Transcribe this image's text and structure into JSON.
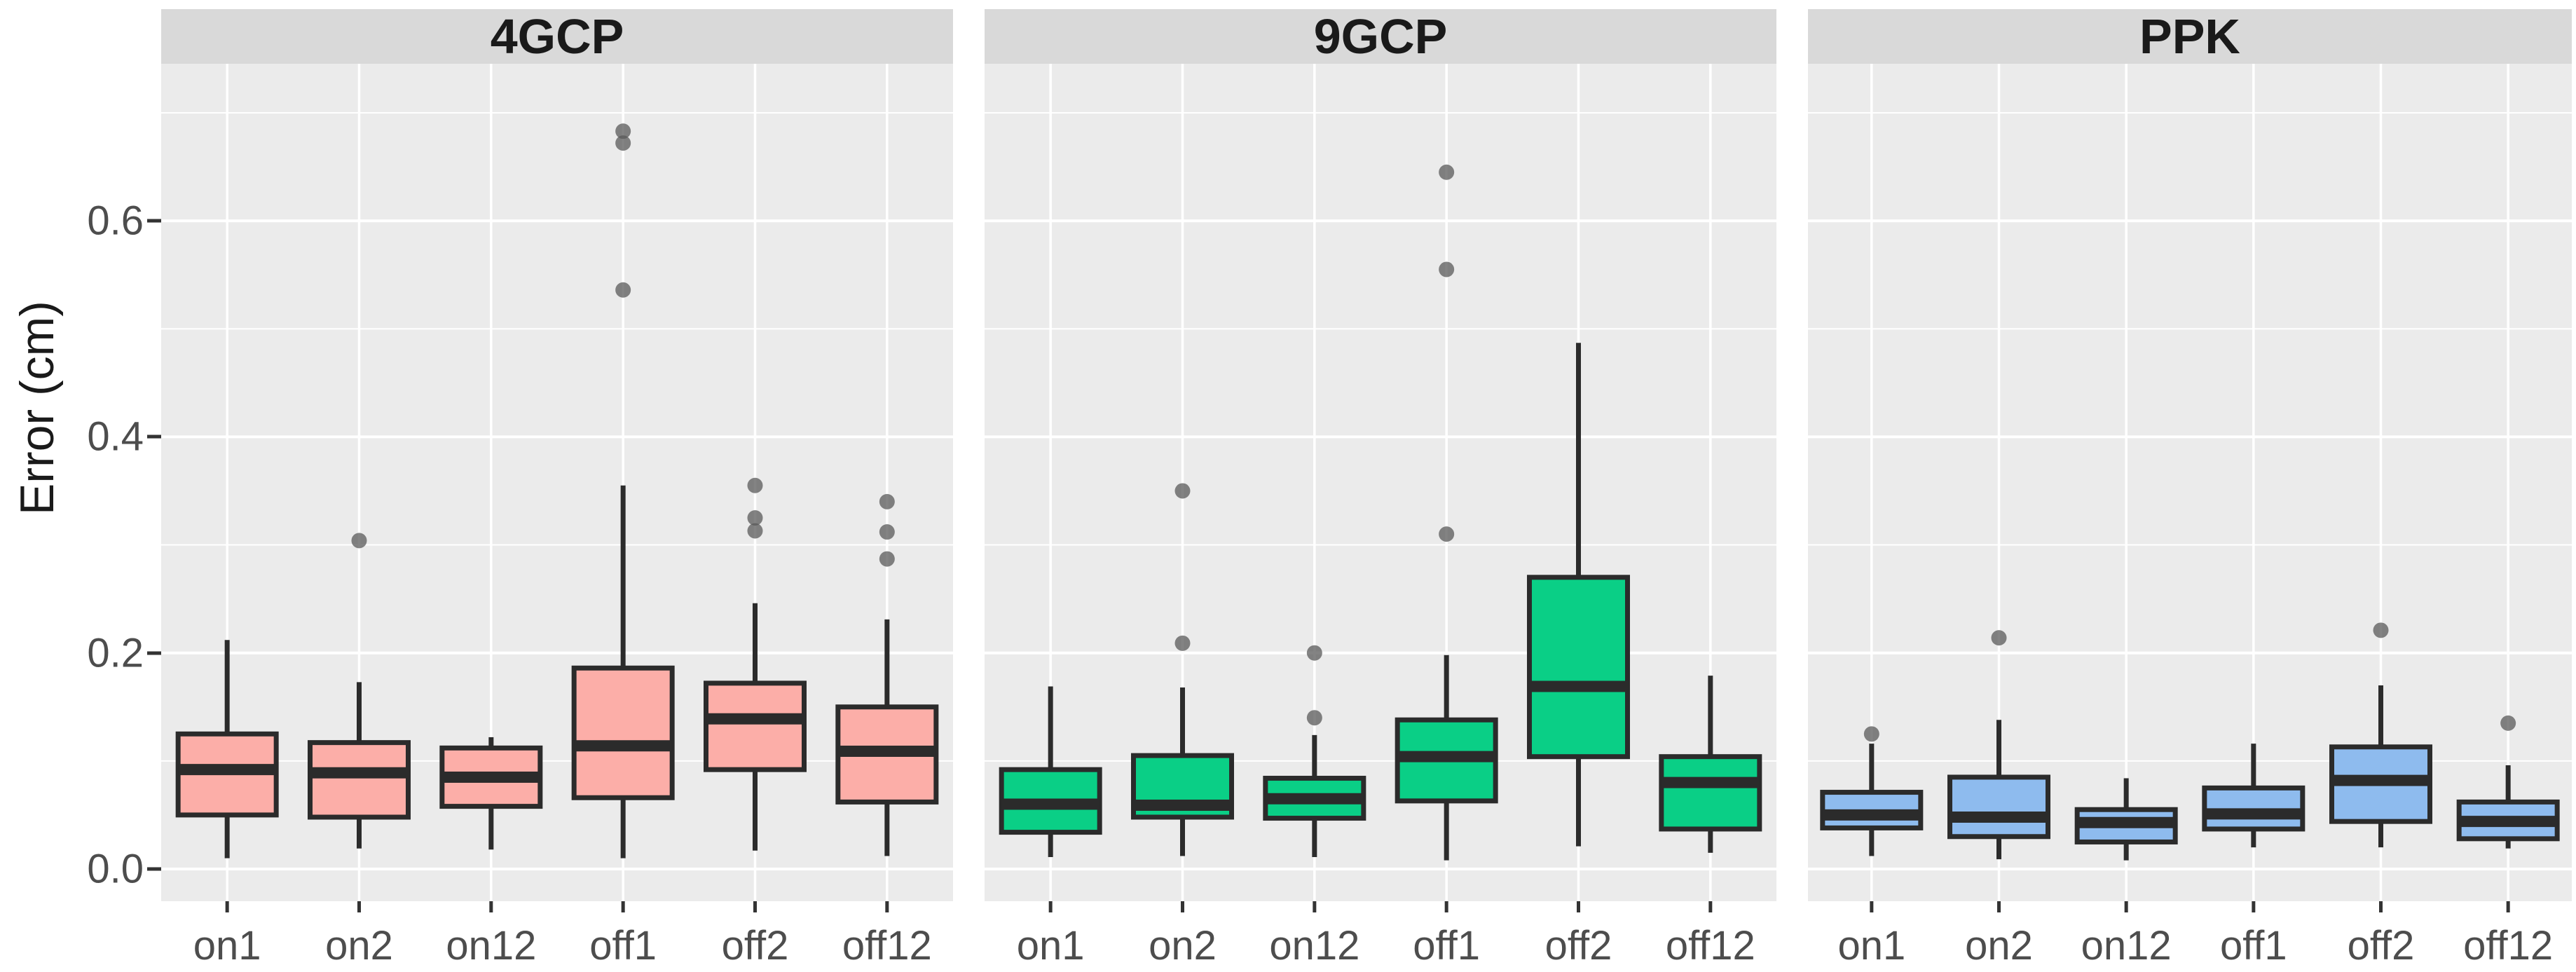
{
  "figure": {
    "ylabel": "Error (cm)",
    "y_tick_labels": [
      "0.0",
      "0.2",
      "0.4",
      "0.6"
    ]
  },
  "chart_data": {
    "type": "boxplot",
    "title": "",
    "xlabel": "",
    "ylabel": "Error (cm)",
    "categories": [
      "on1",
      "on2",
      "on12",
      "off1",
      "off2",
      "off12"
    ],
    "y_major_ticks": [
      0.0,
      0.2,
      0.4,
      0.6
    ],
    "y_minor_gridlines": [
      0.1,
      0.3,
      0.5,
      0.7
    ],
    "ylim": [
      -0.03,
      0.745
    ],
    "grid": true,
    "legend": "none",
    "facets": [
      {
        "label": "4GCP",
        "fill_color": "#FCAEA8",
        "boxes": [
          {
            "category": "on1",
            "min": 0.01,
            "q1": 0.05,
            "median": 0.092,
            "q3": 0.125,
            "max": 0.212,
            "outliers": []
          },
          {
            "category": "on2",
            "min": 0.019,
            "q1": 0.048,
            "median": 0.089,
            "q3": 0.117,
            "max": 0.173,
            "outliers": [
              0.304
            ]
          },
          {
            "category": "on12",
            "min": 0.018,
            "q1": 0.058,
            "median": 0.085,
            "q3": 0.112,
            "max": 0.122,
            "outliers": []
          },
          {
            "category": "off1",
            "min": 0.01,
            "q1": 0.066,
            "median": 0.114,
            "q3": 0.186,
            "max": 0.355,
            "outliers": [
              0.536,
              0.672,
              0.683
            ]
          },
          {
            "category": "off2",
            "min": 0.017,
            "q1": 0.092,
            "median": 0.139,
            "q3": 0.172,
            "max": 0.246,
            "outliers": [
              0.313,
              0.325,
              0.355
            ]
          },
          {
            "category": "off12",
            "min": 0.012,
            "q1": 0.062,
            "median": 0.109,
            "q3": 0.15,
            "max": 0.231,
            "outliers": [
              0.287,
              0.312,
              0.34
            ]
          }
        ]
      },
      {
        "label": "9GCP",
        "fill_color": "#0ACF86",
        "boxes": [
          {
            "category": "on1",
            "min": 0.011,
            "q1": 0.034,
            "median": 0.06,
            "q3": 0.092,
            "max": 0.169,
            "outliers": []
          },
          {
            "category": "on2",
            "min": 0.012,
            "q1": 0.048,
            "median": 0.059,
            "q3": 0.105,
            "max": 0.168,
            "outliers": [
              0.209,
              0.35
            ]
          },
          {
            "category": "on12",
            "min": 0.011,
            "q1": 0.047,
            "median": 0.065,
            "q3": 0.084,
            "max": 0.124,
            "outliers": [
              0.14,
              0.2
            ]
          },
          {
            "category": "off1",
            "min": 0.008,
            "q1": 0.063,
            "median": 0.104,
            "q3": 0.138,
            "max": 0.198,
            "outliers": [
              0.31,
              0.555,
              0.645
            ]
          },
          {
            "category": "off2",
            "min": 0.021,
            "q1": 0.104,
            "median": 0.169,
            "q3": 0.27,
            "max": 0.487,
            "outliers": []
          },
          {
            "category": "off12",
            "min": 0.015,
            "q1": 0.037,
            "median": 0.08,
            "q3": 0.104,
            "max": 0.179,
            "outliers": []
          }
        ]
      },
      {
        "label": "PPK",
        "fill_color": "#8EBBEE",
        "boxes": [
          {
            "category": "on1",
            "min": 0.012,
            "q1": 0.038,
            "median": 0.05,
            "q3": 0.071,
            "max": 0.116,
            "outliers": [
              0.125
            ]
          },
          {
            "category": "on2",
            "min": 0.009,
            "q1": 0.03,
            "median": 0.048,
            "q3": 0.085,
            "max": 0.138,
            "outliers": [
              0.214
            ]
          },
          {
            "category": "on12",
            "min": 0.008,
            "q1": 0.025,
            "median": 0.043,
            "q3": 0.055,
            "max": 0.084,
            "outliers": []
          },
          {
            "category": "off1",
            "min": 0.02,
            "q1": 0.037,
            "median": 0.051,
            "q3": 0.075,
            "max": 0.116,
            "outliers": []
          },
          {
            "category": "off2",
            "min": 0.02,
            "q1": 0.044,
            "median": 0.082,
            "q3": 0.113,
            "max": 0.17,
            "outliers": [
              0.221
            ]
          },
          {
            "category": "off12",
            "min": 0.019,
            "q1": 0.028,
            "median": 0.044,
            "q3": 0.062,
            "max": 0.096,
            "outliers": [
              0.135
            ]
          }
        ]
      }
    ]
  },
  "colors": {
    "panel_background": "#EBEBEB",
    "strip_background": "#D9D9D9",
    "gridline": "#FFFFFF",
    "box_border": "#2B2B2B",
    "median_line": "#2B2B2B",
    "outlier_dot": "#595959",
    "axis_text": "#4D4D4D",
    "tick_mark": "#333333",
    "facet_fills": {
      "4GCP": "#FCAEA8",
      "9GCP": "#0ACF86",
      "PPK": "#8EBBEE"
    }
  }
}
